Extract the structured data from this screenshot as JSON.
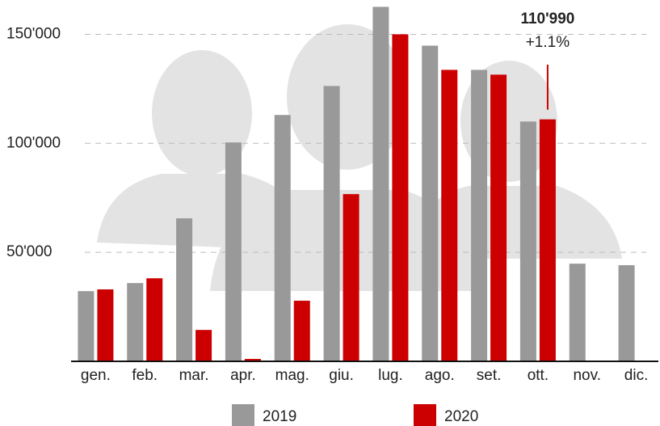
{
  "chart_data": {
    "type": "bar",
    "categories": [
      "gen.",
      "feb.",
      "mar.",
      "apr.",
      "mag.",
      "giu.",
      "lug.",
      "ago.",
      "set.",
      "ott.",
      "nov.",
      "dic."
    ],
    "series": [
      {
        "name": "2019",
        "color": "#999999",
        "values": [
          32200,
          35900,
          65600,
          100400,
          113000,
          126300,
          162600,
          144800,
          133700,
          110000,
          44800,
          44100
        ]
      },
      {
        "name": "2020",
        "color": "#cc0000",
        "values": [
          33000,
          38100,
          14400,
          1100,
          27800,
          76700,
          150000,
          133700,
          131500,
          110990,
          null,
          null
        ],
        "value_labels": [
          null,
          null,
          null,
          null,
          null,
          null,
          null,
          null,
          null,
          "110'990",
          null,
          null
        ]
      }
    ],
    "annotations": [
      {
        "text": "+1.1%"
      }
    ],
    "ylim": [
      0,
      165000
    ],
    "yticks": [
      {
        "value": 50000,
        "label": "50'000"
      },
      {
        "value": 100000,
        "label": "100'000"
      },
      {
        "value": 150000,
        "label": "150'000"
      }
    ],
    "grid": true
  }
}
